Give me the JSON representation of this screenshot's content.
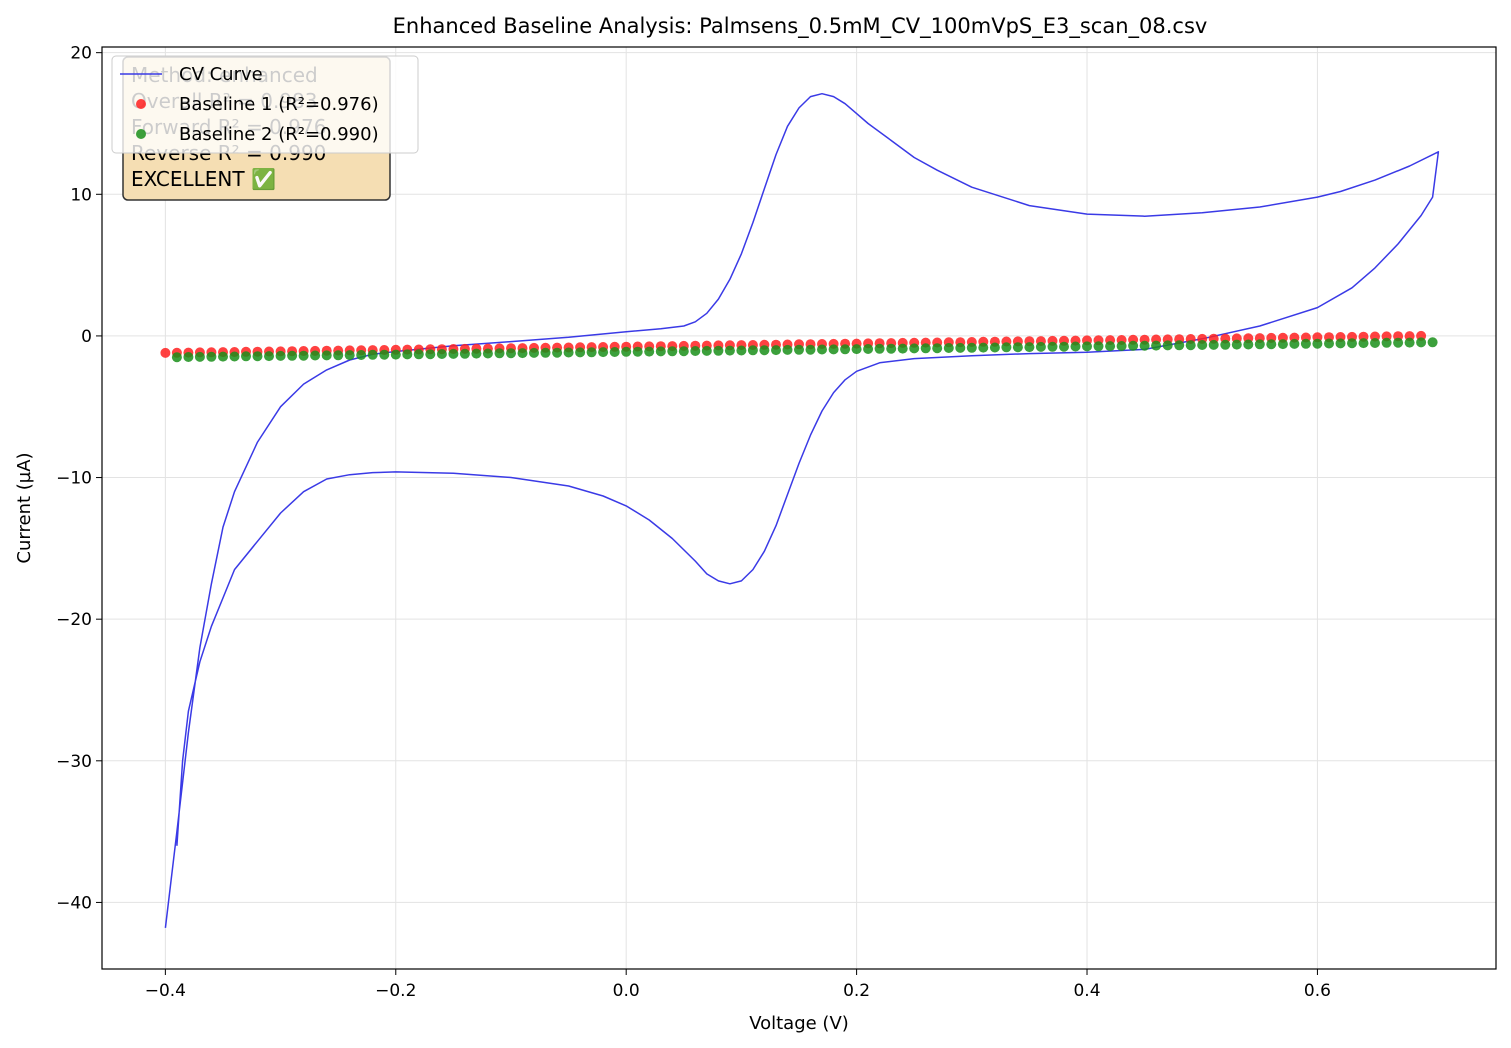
{
  "chart_data": {
    "type": "line",
    "title": "Enhanced Baseline Analysis: Palmsens_0.5mM_CV_100mVpS_E3_scan_08.csv",
    "xlabel": "Voltage (V)",
    "ylabel": "Current (µA)",
    "xlim": [
      -0.455,
      0.755
    ],
    "ylim": [
      -44.7,
      20.4
    ],
    "x_ticks": [
      -0.4,
      -0.2,
      0.0,
      0.2,
      0.4,
      0.6
    ],
    "x_tick_labels": [
      "−0.4",
      "−0.2",
      "0.0",
      "0.2",
      "0.4",
      "0.6"
    ],
    "y_ticks": [
      -40,
      -30,
      -20,
      -10,
      0,
      10,
      20
    ],
    "y_tick_labels": [
      "−40",
      "−30",
      "−20",
      "−10",
      "0",
      "10",
      "20"
    ],
    "grid": true,
    "legend_placement": "top-left",
    "info_box": {
      "lines": [
        "Method: enhanced",
        "Overall R² = 0.983",
        "Forward R² = 0.976",
        "Reverse R² = 0.990",
        "EXCELLENT ✅"
      ],
      "face_color": "#f5deb3",
      "edge_color": "#333333"
    },
    "series": [
      {
        "name": "CV Curve",
        "kind": "line",
        "color": "#3a3ae6",
        "points": [
          [
            -0.39,
            -36.0
          ],
          [
            -0.385,
            -30.0
          ],
          [
            -0.38,
            -26.5
          ],
          [
            -0.37,
            -23.0
          ],
          [
            -0.36,
            -20.5
          ],
          [
            -0.35,
            -18.5
          ],
          [
            -0.34,
            -16.5
          ],
          [
            -0.32,
            -14.5
          ],
          [
            -0.3,
            -12.5
          ],
          [
            -0.28,
            -11.0
          ],
          [
            -0.26,
            -10.1
          ],
          [
            -0.24,
            -9.8
          ],
          [
            -0.22,
            -9.65
          ],
          [
            -0.2,
            -9.6
          ],
          [
            -0.15,
            -9.7
          ],
          [
            -0.1,
            -10.0
          ],
          [
            -0.05,
            -10.6
          ],
          [
            -0.02,
            -11.3
          ],
          [
            0.0,
            -12.0
          ],
          [
            0.02,
            -13.0
          ],
          [
            0.04,
            -14.3
          ],
          [
            0.06,
            -15.9
          ],
          [
            0.07,
            -16.8
          ],
          [
            0.08,
            -17.3
          ],
          [
            0.09,
            -17.5
          ],
          [
            0.1,
            -17.3
          ],
          [
            0.11,
            -16.5
          ],
          [
            0.12,
            -15.2
          ],
          [
            0.13,
            -13.4
          ],
          [
            0.14,
            -11.2
          ],
          [
            0.15,
            -9.0
          ],
          [
            0.16,
            -7.0
          ],
          [
            0.17,
            -5.3
          ],
          [
            0.18,
            -4.0
          ],
          [
            0.19,
            -3.1
          ],
          [
            0.2,
            -2.5
          ],
          [
            0.22,
            -1.9
          ],
          [
            0.25,
            -1.6
          ],
          [
            0.3,
            -1.4
          ],
          [
            0.35,
            -1.25
          ],
          [
            0.4,
            -1.15
          ],
          [
            0.45,
            -0.95
          ],
          [
            0.5,
            -0.2
          ],
          [
            0.55,
            0.7
          ],
          [
            0.6,
            2.0
          ],
          [
            0.63,
            3.4
          ],
          [
            0.65,
            4.8
          ],
          [
            0.67,
            6.5
          ],
          [
            0.69,
            8.5
          ],
          [
            0.7,
            9.8
          ],
          [
            0.705,
            13.0
          ],
          [
            0.68,
            12.0
          ],
          [
            0.65,
            11.0
          ],
          [
            0.62,
            10.2
          ],
          [
            0.6,
            9.8
          ],
          [
            0.55,
            9.1
          ],
          [
            0.5,
            8.7
          ],
          [
            0.45,
            8.45
          ],
          [
            0.4,
            8.6
          ],
          [
            0.35,
            9.2
          ],
          [
            0.3,
            10.5
          ],
          [
            0.27,
            11.7
          ],
          [
            0.25,
            12.6
          ],
          [
            0.23,
            13.8
          ],
          [
            0.21,
            15.0
          ],
          [
            0.2,
            15.7
          ],
          [
            0.19,
            16.4
          ],
          [
            0.18,
            16.9
          ],
          [
            0.17,
            17.1
          ],
          [
            0.16,
            16.9
          ],
          [
            0.15,
            16.1
          ],
          [
            0.14,
            14.8
          ],
          [
            0.13,
            12.8
          ],
          [
            0.12,
            10.4
          ],
          [
            0.11,
            8.0
          ],
          [
            0.1,
            5.8
          ],
          [
            0.09,
            4.0
          ],
          [
            0.08,
            2.6
          ],
          [
            0.07,
            1.6
          ],
          [
            0.06,
            1.0
          ],
          [
            0.05,
            0.7
          ],
          [
            0.03,
            0.5
          ],
          [
            0.0,
            0.3
          ],
          [
            -0.05,
            -0.1
          ],
          [
            -0.1,
            -0.4
          ],
          [
            -0.15,
            -0.7
          ],
          [
            -0.2,
            -1.1
          ],
          [
            -0.22,
            -1.3
          ],
          [
            -0.24,
            -1.7
          ],
          [
            -0.26,
            -2.4
          ],
          [
            -0.28,
            -3.4
          ],
          [
            -0.3,
            -5.0
          ],
          [
            -0.32,
            -7.5
          ],
          [
            -0.34,
            -11.0
          ],
          [
            -0.35,
            -13.5
          ],
          [
            -0.36,
            -17.5
          ],
          [
            -0.37,
            -22.0
          ],
          [
            -0.38,
            -28.0
          ],
          [
            -0.39,
            -35.0
          ],
          [
            -0.4,
            -41.8
          ]
        ]
      },
      {
        "name": "Baseline 1 (R²=0.976)",
        "kind": "scatter",
        "color": "#ff2020",
        "x_start": -0.4,
        "x_end": 0.69,
        "x_step": 0.01,
        "y_start": -1.2,
        "y_end": 0.0
      },
      {
        "name": "Baseline 2 (R²=0.990)",
        "kind": "scatter",
        "color": "#1a8f1a",
        "x_start": -0.39,
        "x_end": 0.7,
        "x_step": 0.01,
        "y_start": -1.5,
        "y_end": -0.45
      }
    ]
  }
}
